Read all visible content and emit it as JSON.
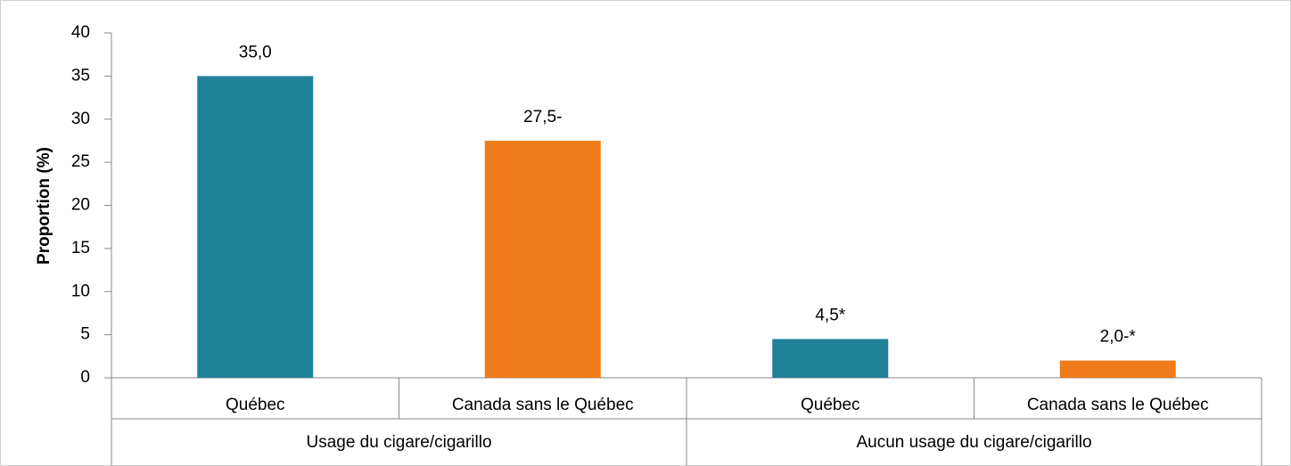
{
  "chart_data": {
    "type": "bar",
    "ylabel": "Proportion (%)",
    "categories": [
      "Québec",
      "Canada sans le Québec",
      "Québec",
      "Canada sans le Québec"
    ],
    "groups": [
      "Usage du cigare/cigarillo",
      "Aucun usage du cigare/cigarillo"
    ],
    "values": [
      35.0,
      27.5,
      4.5,
      2.0
    ],
    "value_labels": [
      "35,0",
      "27,5-",
      "4,5*",
      "2,0-*"
    ],
    "colors": [
      "#1f8199",
      "#f07b1b",
      "#1f8199",
      "#f07b1b"
    ],
    "ylim": [
      0,
      40
    ],
    "yticks": [
      0,
      5,
      10,
      15,
      20,
      25,
      30,
      35,
      40
    ],
    "grid": false
  }
}
